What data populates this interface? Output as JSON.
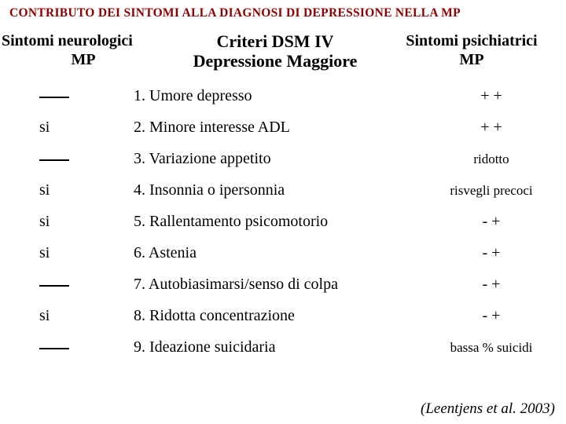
{
  "title": "CONTRIBUTO DEI SINTOMI ALLA DIAGNOSI DI DEPRESSIONE  NELLA MP",
  "headers": {
    "left_line1": "Sintomi neurologici",
    "left_line2": "MP",
    "mid_line1": "Criteri DSM IV",
    "mid_line2": "Depressione Maggiore",
    "right_line1": "Sintomi psichiatrici",
    "right_line2": "MP"
  },
  "rows": [
    {
      "left": "",
      "mid": "1. Umore depresso",
      "right": "+ +",
      "right_small": false
    },
    {
      "left": "si",
      "mid": "2. Minore interesse ADL",
      "right": "+ +",
      "right_small": false
    },
    {
      "left": "",
      "mid": "3. Variazione appetito",
      "right": "ridotto",
      "right_small": true
    },
    {
      "left": "si",
      "mid": "4.  Insonnia o ipersonnia",
      "right": "risvegli precoci",
      "right_small": true
    },
    {
      "left": "si",
      "mid": "5.  Rallentamento psicomotorio",
      "right": "- +",
      "right_small": false
    },
    {
      "left": "si",
      "mid": "6.  Astenia",
      "right": "- +",
      "right_small": false
    },
    {
      "left": "",
      "mid": "7. Autobiasimarsi/senso di colpa",
      "right": "- +",
      "right_small": false
    },
    {
      "left": "si",
      "mid": "8. Ridotta concentrazione",
      "right": "- +",
      "right_small": false
    },
    {
      "left": "",
      "mid": "9. Ideazione suicidaria",
      "right": "bassa % suicidi",
      "right_small": true
    }
  ],
  "citation": "(Leentjens et al. 2003)",
  "colors": {
    "title": "#8b0000",
    "text": "#000000",
    "background": "#ffffff"
  }
}
